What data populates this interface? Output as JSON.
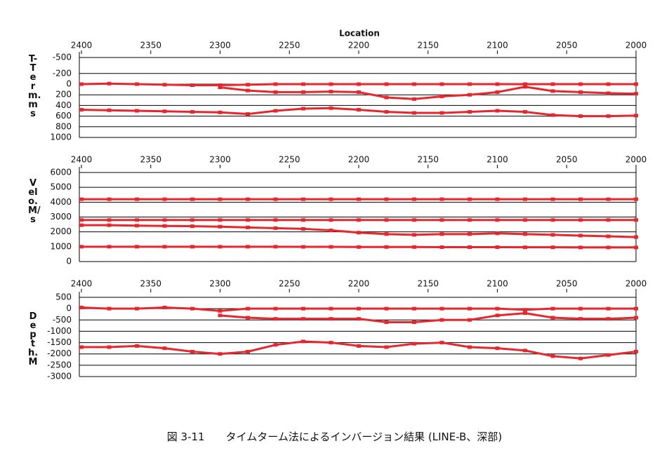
{
  "chart_data": [
    {
      "type": "scatter",
      "x_label": "Location",
      "y_label": "T-Term. ms",
      "x": [
        2400,
        2380,
        2360,
        2340,
        2320,
        2300,
        2280,
        2260,
        2240,
        2220,
        2200,
        2180,
        2160,
        2140,
        2120,
        2100,
        2080,
        2060,
        2040,
        2020,
        2000
      ],
      "xlim": [
        2400,
        2000
      ],
      "xticks": [
        2400,
        2350,
        2300,
        2250,
        2200,
        2150,
        2100,
        2050,
        2000
      ],
      "ylim": [
        1000,
        -500
      ],
      "yticks": [
        -500,
        -200,
        0,
        200,
        400,
        600,
        800,
        1000
      ],
      "grid": true,
      "series": [
        {
          "color": "#e8262e",
          "values": [
            0,
            -10,
            0,
            10,
            20,
            20,
            10,
            0,
            0,
            0,
            0,
            0,
            0,
            0,
            0,
            0,
            0,
            0,
            0,
            0,
            0
          ]
        },
        {
          "color": "#e8262e",
          "values": [
            null,
            null,
            null,
            null,
            null,
            60,
            120,
            150,
            150,
            140,
            150,
            250,
            280,
            230,
            200,
            150,
            50,
            130,
            150,
            170,
            180
          ]
        },
        {
          "color": "#e8262e",
          "values": [
            480,
            490,
            500,
            510,
            520,
            530,
            560,
            500,
            460,
            450,
            480,
            520,
            540,
            540,
            520,
            500,
            520,
            580,
            600,
            600,
            590
          ]
        }
      ]
    },
    {
      "type": "scatter",
      "y_label": "Velo. M/s",
      "x": [
        2400,
        2380,
        2360,
        2340,
        2320,
        2300,
        2280,
        2260,
        2240,
        2220,
        2200,
        2180,
        2160,
        2140,
        2120,
        2100,
        2080,
        2060,
        2040,
        2020,
        2000
      ],
      "xlim": [
        2400,
        2000
      ],
      "xticks": [
        2400,
        2350,
        2300,
        2250,
        2200,
        2150,
        2100,
        2050,
        2000
      ],
      "ylim": [
        0,
        6000
      ],
      "yticks": [
        0,
        1000,
        2000,
        3000,
        4000,
        5000,
        6000
      ],
      "grid": true,
      "series": [
        {
          "color": "#e8262e",
          "values": [
            4200,
            4200,
            4200,
            4200,
            4200,
            4200,
            4200,
            4200,
            4200,
            4200,
            4200,
            4200,
            4200,
            4200,
            4200,
            4200,
            4200,
            4200,
            4200,
            4200,
            4200
          ]
        },
        {
          "color": "#e8262e",
          "values": [
            2800,
            2800,
            2800,
            2800,
            2800,
            2800,
            2800,
            2800,
            2800,
            2800,
            2800,
            2800,
            2800,
            2800,
            2800,
            2800,
            2800,
            2800,
            2800,
            2800,
            2800
          ]
        },
        {
          "color": "#e8262e",
          "values": [
            2450,
            2450,
            2420,
            2400,
            2380,
            2350,
            2300,
            2250,
            2200,
            2100,
            1950,
            1850,
            1800,
            1850,
            1850,
            1900,
            1850,
            1800,
            1750,
            1700,
            1650
          ]
        },
        {
          "color": "#e8262e",
          "values": [
            1000,
            1000,
            1000,
            1000,
            1000,
            1000,
            1000,
            1000,
            990,
            990,
            980,
            980,
            980,
            970,
            970,
            970,
            960,
            960,
            950,
            950,
            950
          ]
        }
      ]
    },
    {
      "type": "scatter",
      "y_label": "Depth. M",
      "x": [
        2400,
        2380,
        2360,
        2340,
        2320,
        2300,
        2280,
        2260,
        2240,
        2220,
        2200,
        2180,
        2160,
        2140,
        2120,
        2100,
        2080,
        2060,
        2040,
        2020,
        2000
      ],
      "xlim": [
        2400,
        2000
      ],
      "xticks": [
        2400,
        2350,
        2300,
        2250,
        2200,
        2150,
        2100,
        2050,
        2000
      ],
      "ylim": [
        -3000,
        500
      ],
      "yticks": [
        500,
        0,
        -500,
        -1000,
        -1500,
        -2000,
        -2500,
        -3000
      ],
      "grid": true,
      "series": [
        {
          "color": "#e8262e",
          "values": [
            50,
            0,
            0,
            50,
            0,
            -100,
            0,
            0,
            0,
            0,
            0,
            0,
            0,
            0,
            0,
            0,
            -50,
            0,
            0,
            0,
            0
          ]
        },
        {
          "color": "#e8262e",
          "values": [
            null,
            null,
            null,
            null,
            null,
            -300,
            -400,
            -450,
            -450,
            -450,
            -450,
            -600,
            -600,
            -500,
            -500,
            -300,
            -200,
            -400,
            -450,
            -450,
            -400
          ]
        },
        {
          "color": "#e8262e",
          "values": [
            -1700,
            -1700,
            -1650,
            -1750,
            -1900,
            -2000,
            -1900,
            -1600,
            -1450,
            -1500,
            -1650,
            -1700,
            -1550,
            -1500,
            -1700,
            -1750,
            -1850,
            -2100,
            -2200,
            -2050,
            -1900
          ]
        }
      ]
    }
  ],
  "caption": "図 3-11　　タイムターム法によるインバージョン結果 (LINE-B、深部)"
}
